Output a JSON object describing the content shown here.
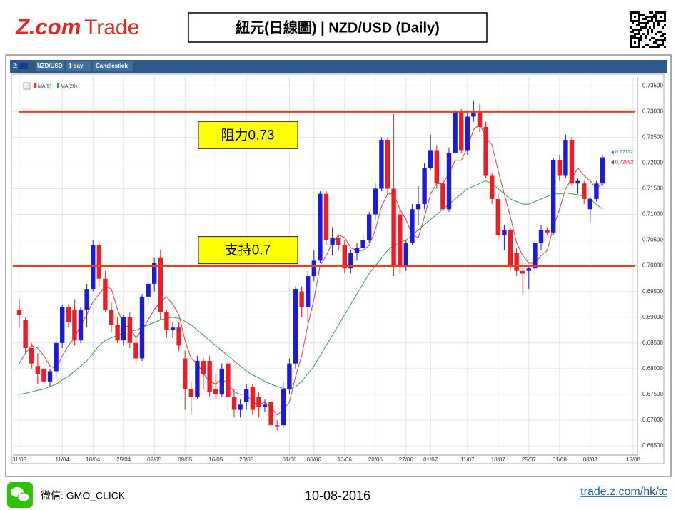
{
  "header": {
    "logo_a": "Z.com",
    "logo_b": "Trade",
    "title": "紐元(日線圖) | NZD/USD (Daily)"
  },
  "toolbar": [
    "2:",
    "NZD/USD",
    "1 day",
    "Candlestick"
  ],
  "chart_data": {
    "type": "candlestick",
    "categories": [
      "31/03",
      null,
      null,
      null,
      null,
      null,
      null,
      "11/04",
      null,
      null,
      null,
      null,
      "18/04",
      null,
      null,
      null,
      null,
      "25/04",
      null,
      null,
      null,
      null,
      "02/05",
      null,
      null,
      null,
      null,
      "09/05",
      null,
      null,
      null,
      null,
      "16/05",
      null,
      null,
      null,
      null,
      "23/05",
      null,
      null,
      null,
      null,
      null,
      null,
      "01/06",
      null,
      null,
      null,
      "06/06",
      null,
      null,
      null,
      null,
      "13/06",
      null,
      null,
      null,
      null,
      "20/06",
      null,
      null,
      null,
      null,
      "27/06",
      null,
      null,
      null,
      "01/07",
      null,
      null,
      null,
      null,
      null,
      "11/07",
      null,
      null,
      null,
      null,
      "18/07",
      null,
      null,
      null,
      null,
      "25/07",
      null,
      null,
      null,
      null,
      "01/08",
      null,
      null,
      null,
      null,
      "08/08",
      null,
      null,
      null,
      null,
      null,
      null,
      "15/08"
    ],
    "open": [
      0.6915,
      0.6895,
      0.684,
      0.6805,
      0.68,
      0.6775,
      0.6795,
      0.685,
      0.692,
      0.6915,
      0.6855,
      0.6915,
      0.6955,
      0.704,
      0.6975,
      0.6915,
      0.6885,
      0.6855,
      0.69,
      0.685,
      0.682,
      0.694,
      0.6965,
      0.7015,
      0.691,
      0.6875,
      0.688,
      0.682,
      0.676,
      0.6745,
      0.6815,
      0.6815,
      0.676,
      0.675,
      0.681,
      0.6745,
      0.672,
      0.6735,
      0.6765,
      0.6745,
      0.6725,
      0.6735,
      0.669,
      0.669,
      0.676,
      0.681,
      0.695,
      0.692,
      0.698,
      0.701,
      0.714,
      0.704,
      0.7055,
      0.704,
      0.6995,
      0.7025,
      0.7035,
      0.705,
      0.71,
      0.715,
      0.7245,
      0.715,
      0.71,
      0.7,
      0.7045,
      0.711,
      0.712,
      0.719,
      0.7225,
      0.716,
      0.711,
      0.722,
      0.73,
      0.7225,
      0.729,
      0.73,
      0.727,
      0.7175,
      0.713,
      0.706,
      0.707,
      0.7025,
      0.699,
      0.699,
      0.6995,
      0.7045,
      0.707,
      0.7065,
      0.7205,
      0.7175,
      0.7245,
      0.716,
      0.716,
      0.711,
      0.713,
      0.716,
      null,
      null,
      null,
      null,
      null
    ],
    "high": [
      0.6935,
      0.69,
      0.685,
      0.683,
      0.682,
      0.68,
      0.686,
      0.6925,
      0.6925,
      0.6935,
      0.692,
      0.6965,
      0.705,
      0.7045,
      0.699,
      0.693,
      0.69,
      0.6905,
      0.691,
      0.686,
      0.6945,
      0.699,
      0.7015,
      0.703,
      0.6915,
      0.689,
      0.689,
      0.6835,
      0.6775,
      0.6825,
      0.682,
      0.6825,
      0.679,
      0.681,
      0.6815,
      0.676,
      0.674,
      0.677,
      0.677,
      0.6755,
      0.674,
      0.6745,
      0.67,
      0.6775,
      0.682,
      0.696,
      0.696,
      0.699,
      0.703,
      0.7145,
      0.7145,
      0.7075,
      0.706,
      0.705,
      0.703,
      0.7045,
      0.706,
      0.7105,
      0.716,
      0.725,
      0.725,
      0.7295,
      0.711,
      0.705,
      0.712,
      0.7155,
      0.72,
      0.7255,
      0.7235,
      0.7175,
      0.723,
      0.7305,
      0.7305,
      0.73,
      0.732,
      0.7315,
      0.728,
      0.718,
      0.714,
      0.708,
      0.7075,
      0.7035,
      0.7005,
      0.7,
      0.705,
      0.708,
      0.7075,
      0.721,
      0.7215,
      0.7255,
      0.725,
      0.717,
      0.7165,
      0.7135,
      0.7165,
      0.7215,
      null,
      null,
      null,
      null,
      null
    ],
    "low": [
      0.688,
      0.683,
      0.68,
      0.677,
      0.676,
      0.6765,
      0.6785,
      0.684,
      0.688,
      0.6845,
      0.685,
      0.688,
      0.695,
      0.696,
      0.691,
      0.687,
      0.685,
      0.6845,
      0.684,
      0.681,
      0.6815,
      0.692,
      0.695,
      0.6895,
      0.686,
      0.686,
      0.6835,
      0.672,
      0.671,
      0.674,
      0.676,
      0.6745,
      0.674,
      0.6745,
      0.6715,
      0.6705,
      0.6705,
      0.672,
      0.671,
      0.6705,
      0.6715,
      0.668,
      0.668,
      0.6685,
      0.675,
      0.68,
      0.69,
      0.689,
      0.697,
      0.7005,
      0.704,
      0.702,
      0.703,
      0.6985,
      0.6985,
      0.701,
      0.7025,
      0.7045,
      0.709,
      0.7145,
      0.714,
      0.698,
      0.6985,
      0.699,
      0.704,
      0.708,
      0.711,
      0.7185,
      0.715,
      0.7105,
      0.7105,
      0.7215,
      0.722,
      0.7215,
      0.728,
      0.726,
      0.717,
      0.712,
      0.705,
      0.703,
      0.699,
      0.698,
      0.6945,
      0.6955,
      0.6985,
      0.703,
      0.706,
      0.706,
      0.7165,
      0.717,
      0.7155,
      0.714,
      0.712,
      0.7085,
      0.7125,
      0.7155,
      null,
      null,
      null,
      null,
      null
    ],
    "close": [
      0.6905,
      0.684,
      0.681,
      0.679,
      0.6775,
      0.6795,
      0.685,
      0.692,
      0.689,
      0.6855,
      0.6915,
      0.6955,
      0.704,
      0.6975,
      0.6915,
      0.6885,
      0.6855,
      0.69,
      0.685,
      0.682,
      0.694,
      0.6965,
      0.7005,
      0.691,
      0.6875,
      0.688,
      0.6845,
      0.676,
      0.6745,
      0.6815,
      0.679,
      0.6755,
      0.675,
      0.68,
      0.6745,
      0.672,
      0.673,
      0.676,
      0.672,
      0.6725,
      0.673,
      0.669,
      0.6688,
      0.676,
      0.681,
      0.6955,
      0.692,
      0.698,
      0.701,
      0.714,
      0.705,
      0.7055,
      0.704,
      0.6995,
      0.7025,
      0.7035,
      0.705,
      0.71,
      0.715,
      0.7245,
      0.715,
      0.7,
      0.7,
      0.7045,
      0.711,
      0.712,
      0.719,
      0.7225,
      0.716,
      0.711,
      0.722,
      0.73,
      0.7225,
      0.729,
      0.73,
      0.727,
      0.7175,
      0.713,
      0.706,
      0.707,
      0.7,
      0.699,
      0.6985,
      0.6995,
      0.7045,
      0.707,
      0.7065,
      0.7205,
      0.7175,
      0.7245,
      0.716,
      0.7165,
      0.713,
      0.713,
      0.716,
      0.7211,
      null,
      null,
      null,
      null,
      null
    ],
    "up_color": "#1c1cd8",
    "down_color": "#ee1c24",
    "series": [
      {
        "name": "MA(5)",
        "color": "#e83a3a",
        "values": [
          0.681,
          0.683,
          0.6845,
          0.684,
          0.6825,
          0.6805,
          0.68,
          0.6825,
          0.6845,
          0.686,
          0.6885,
          0.6905,
          0.693,
          0.6945,
          0.696,
          0.6955,
          0.6915,
          0.6885,
          0.688,
          0.686,
          0.6875,
          0.6895,
          0.6915,
          0.693,
          0.694,
          0.6925,
          0.6905,
          0.6855,
          0.682,
          0.681,
          0.679,
          0.6775,
          0.677,
          0.678,
          0.677,
          0.6755,
          0.675,
          0.675,
          0.6735,
          0.673,
          0.6735,
          0.6725,
          0.671,
          0.672,
          0.6735,
          0.6785,
          0.6825,
          0.6885,
          0.6935,
          0.7,
          0.702,
          0.7045,
          0.706,
          0.7055,
          0.7035,
          0.703,
          0.703,
          0.704,
          0.707,
          0.7115,
          0.714,
          0.714,
          0.711,
          0.709,
          0.706,
          0.7055,
          0.7095,
          0.714,
          0.716,
          0.716,
          0.718,
          0.7205,
          0.7205,
          0.723,
          0.7265,
          0.7275,
          0.725,
          0.7235,
          0.7185,
          0.714,
          0.7095,
          0.7045,
          0.702,
          0.7005,
          0.7005,
          0.702,
          0.703,
          0.7075,
          0.711,
          0.715,
          0.717,
          0.719,
          0.7175,
          0.7165,
          0.715,
          0.716,
          null,
          null,
          null,
          null,
          null
        ]
      },
      {
        "name": "MA(20)",
        "color": "#3a9a50",
        "values": [
          0.675,
          0.6752,
          0.6755,
          0.6758,
          0.676,
          0.6765,
          0.677,
          0.6778,
          0.6785,
          0.6795,
          0.6805,
          0.6815,
          0.683,
          0.6845,
          0.6855,
          0.686,
          0.6865,
          0.687,
          0.6872,
          0.6875,
          0.688,
          0.6885,
          0.689,
          0.6895,
          0.6898,
          0.69,
          0.6898,
          0.6892,
          0.6885,
          0.6875,
          0.6865,
          0.6855,
          0.6845,
          0.6835,
          0.6825,
          0.6815,
          0.6805,
          0.6795,
          0.6788,
          0.6782,
          0.6775,
          0.677,
          0.6765,
          0.6762,
          0.676,
          0.6765,
          0.6775,
          0.679,
          0.6805,
          0.6825,
          0.6845,
          0.6865,
          0.6885,
          0.6905,
          0.6925,
          0.6945,
          0.6965,
          0.6985,
          0.7,
          0.7015,
          0.703,
          0.704,
          0.7045,
          0.705,
          0.706,
          0.707,
          0.708,
          0.709,
          0.71,
          0.711,
          0.712,
          0.713,
          0.714,
          0.715,
          0.7155,
          0.716,
          0.7165,
          0.716,
          0.715,
          0.714,
          0.713,
          0.7125,
          0.712,
          0.712,
          0.7125,
          0.713,
          0.7135,
          0.714,
          0.714,
          0.7142,
          0.714,
          0.7138,
          0.7135,
          0.713,
          0.712,
          0.711,
          null,
          null,
          null,
          null,
          null
        ]
      }
    ],
    "ylim": [
      0.6632,
      0.7367
    ],
    "yticks": [
      {
        "value": 0.665,
        "label": "0.66500"
      },
      {
        "value": 0.67,
        "label": "0.67000"
      },
      {
        "value": 0.675,
        "label": "0.67500"
      },
      {
        "value": 0.68,
        "label": "0.68000"
      },
      {
        "value": 0.685,
        "label": "0.68500"
      },
      {
        "value": 0.69,
        "label": "0.69000"
      },
      {
        "value": 0.695,
        "label": "0.69500"
      },
      {
        "value": 0.7,
        "label": "0.70000"
      },
      {
        "value": 0.705,
        "label": "0.70500"
      },
      {
        "value": 0.71,
        "label": "0.71000"
      },
      {
        "value": 0.715,
        "label": "0.71500"
      },
      {
        "value": 0.72,
        "label": "0.72000"
      },
      {
        "value": 0.725,
        "label": "0.72500"
      },
      {
        "value": 0.73,
        "label": "0.73000"
      },
      {
        "value": 0.735,
        "label": "0.73500"
      }
    ],
    "grid": true,
    "price_labels": [
      {
        "value": 0.72112,
        "label": "0.72112",
        "color": "#1e90d0"
      },
      {
        "value": 0.72092,
        "label": "0.72092",
        "color": "#e0202a"
      }
    ],
    "hlines": [
      {
        "value": 0.73,
        "label": "阻力0.73",
        "color": "#e8401a"
      },
      {
        "value": 0.7,
        "label": "支持0.7",
        "color": "#e8401a"
      }
    ]
  },
  "footer": {
    "wechat": "微信: GMO_CLICK",
    "date": "10-08-2016",
    "link": "trade.z.com/hk/tc"
  }
}
